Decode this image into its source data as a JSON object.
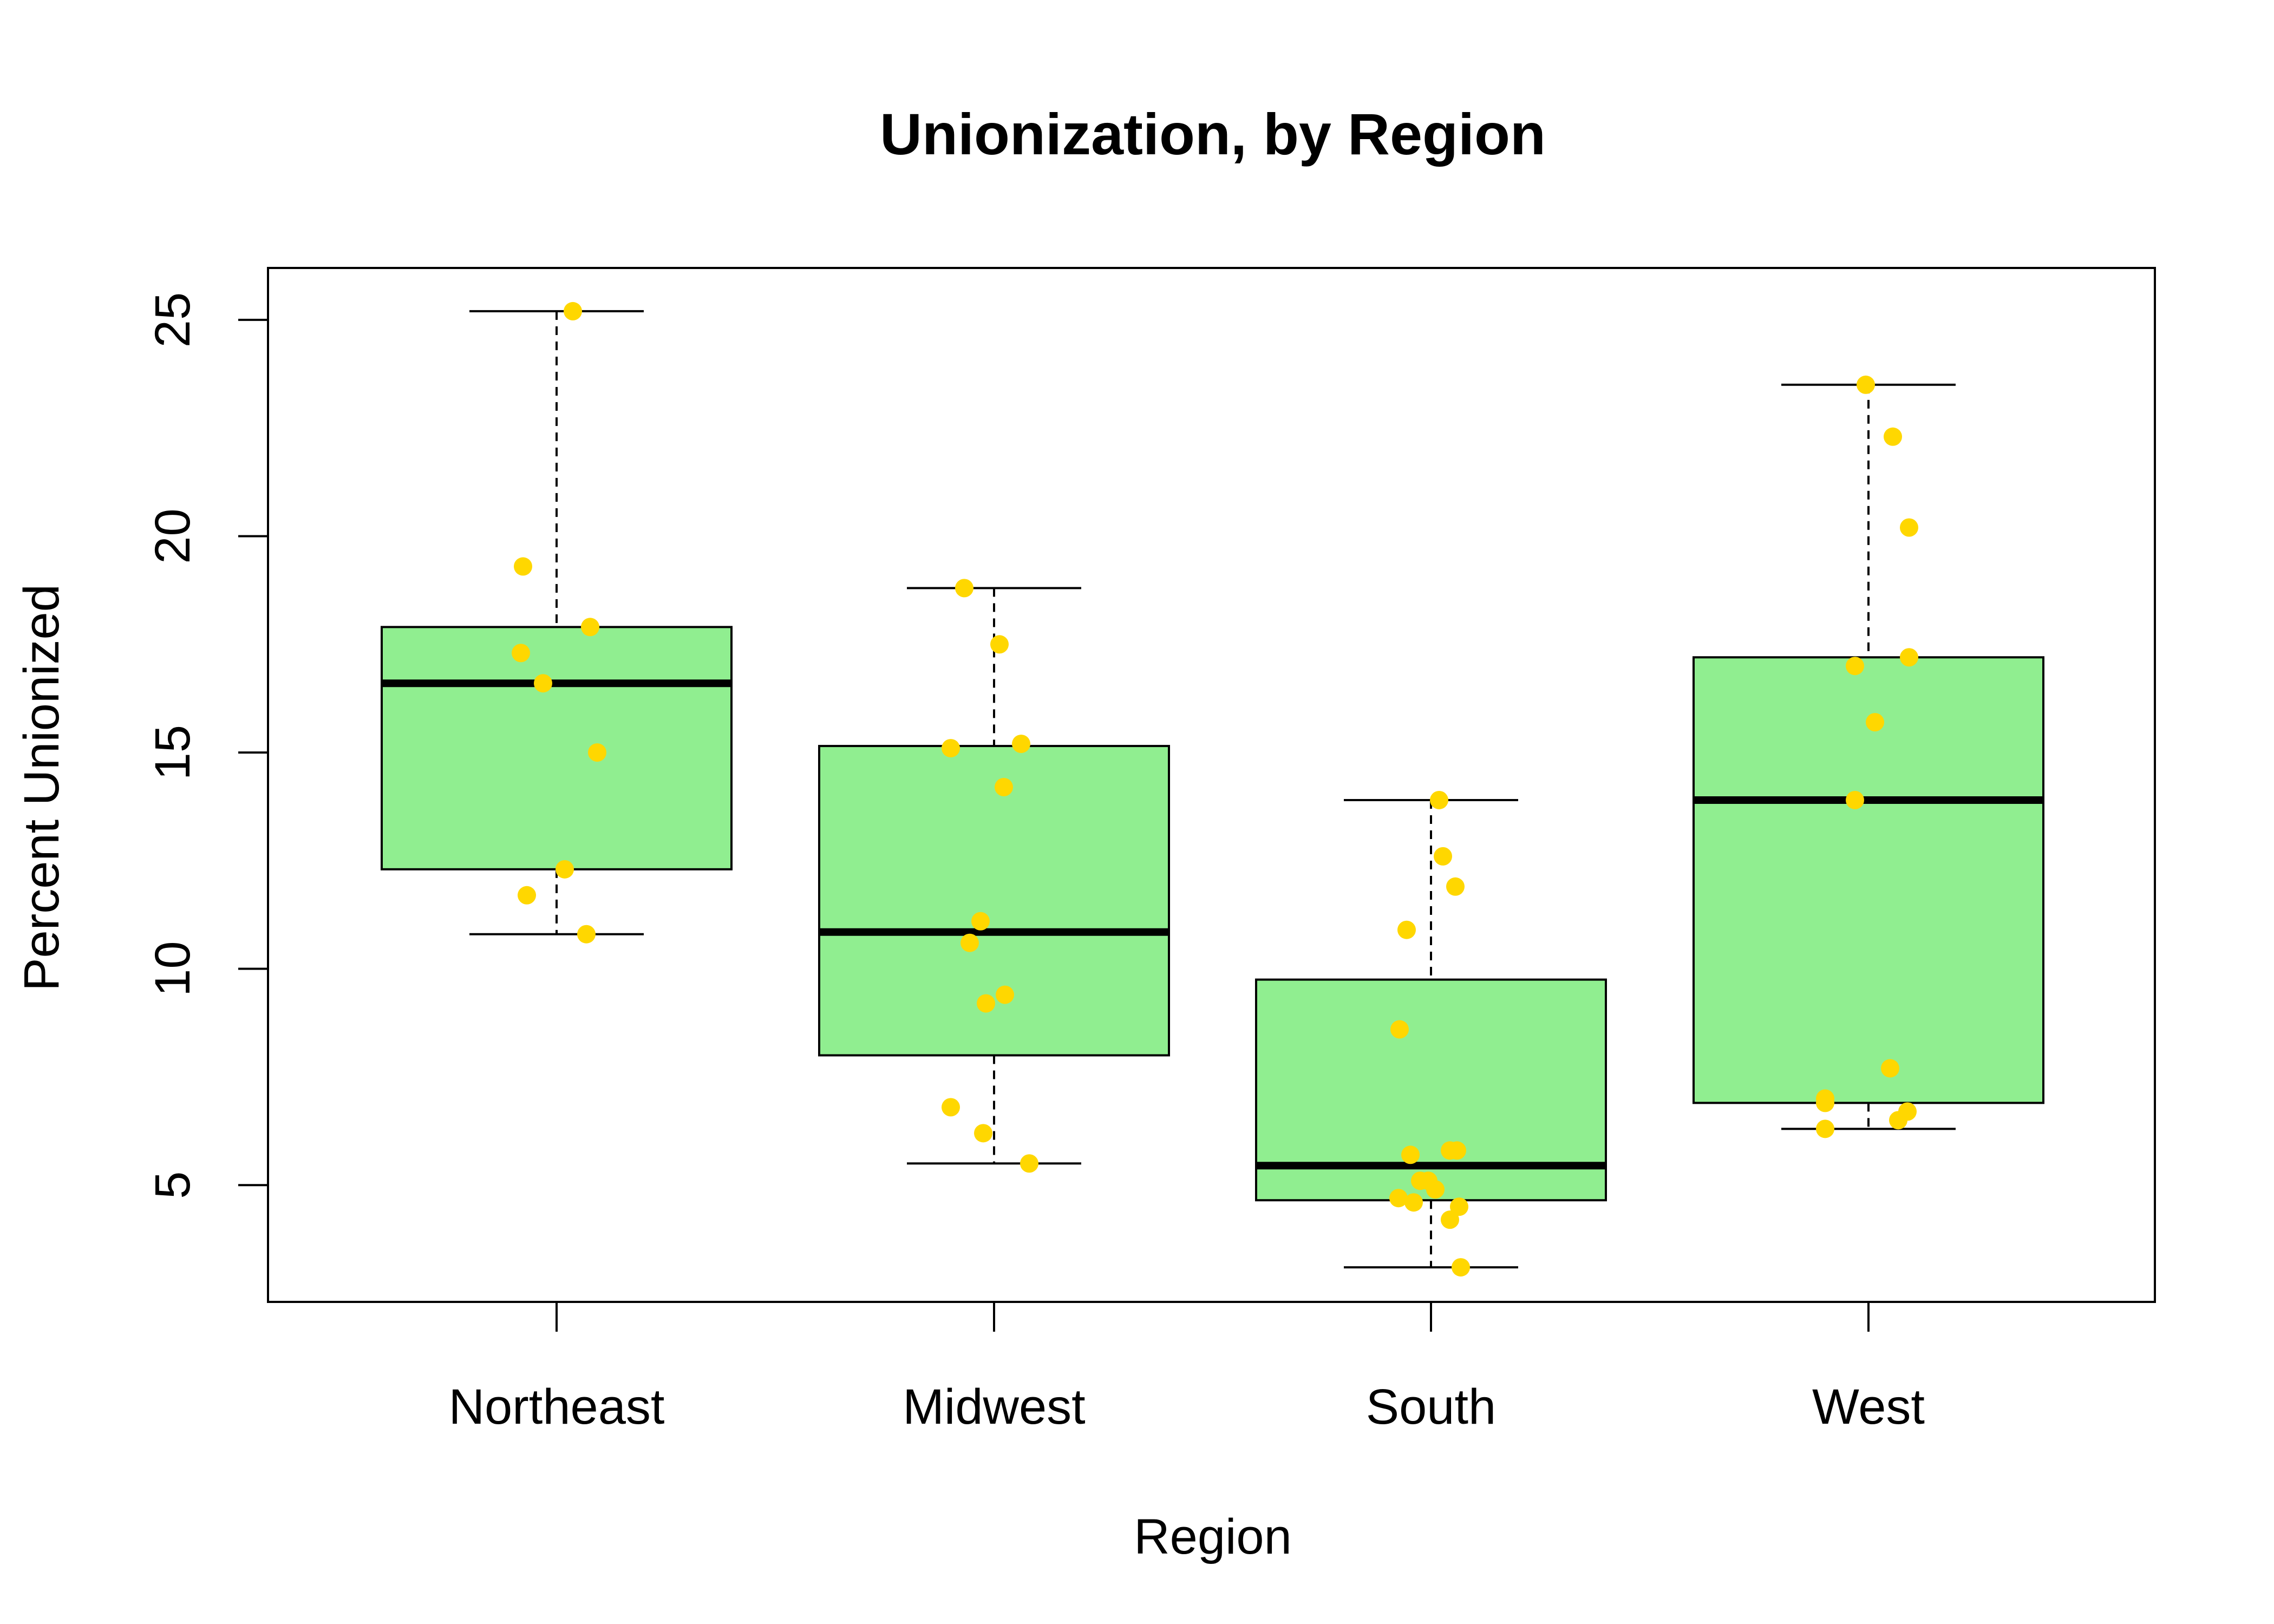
{
  "chart_data": {
    "type": "boxplot",
    "title": "Unionization, by Region",
    "xlabel": "Region",
    "ylabel": "Percent Unionized",
    "ylim": [
      2.3,
      26.2
    ],
    "yticks": [
      5,
      10,
      15,
      20,
      25
    ],
    "categories": [
      "Northeast",
      "Midwest",
      "South",
      "West"
    ],
    "grid": false,
    "box_color": "#90EE90",
    "point_color": "#FFD700",
    "boxes": [
      {
        "category": "Northeast",
        "whisker_low": 10.8,
        "q1": 12.3,
        "median": 16.6,
        "q3": 17.9,
        "whisker_high": 25.2
      },
      {
        "category": "Midwest",
        "whisker_low": 5.5,
        "q1": 8.0,
        "median": 10.85,
        "q3": 15.15,
        "whisker_high": 18.8
      },
      {
        "category": "South",
        "whisker_low": 3.1,
        "q1": 4.65,
        "median": 5.45,
        "q3": 9.75,
        "whisker_high": 13.9
      },
      {
        "category": "West",
        "whisker_low": 6.3,
        "q1": 6.9,
        "median": 13.9,
        "q3": 17.2,
        "whisker_high": 23.5
      }
    ],
    "points": [
      {
        "category": "Northeast",
        "values": [
          25.2,
          19.3,
          17.9,
          17.3,
          16.6,
          15.0,
          12.3,
          11.7,
          10.8
        ]
      },
      {
        "category": "Midwest",
        "values": [
          18.8,
          17.5,
          15.2,
          15.1,
          14.2,
          11.1,
          10.6,
          9.4,
          9.2,
          6.8,
          6.2,
          5.5
        ]
      },
      {
        "category": "South",
        "values": [
          13.9,
          12.6,
          11.9,
          10.9,
          8.6,
          5.8,
          5.8,
          5.7,
          5.1,
          5.1,
          4.9,
          4.7,
          4.6,
          4.5,
          4.2,
          3.1
        ]
      },
      {
        "category": "West",
        "values": [
          23.5,
          22.3,
          20.2,
          17.2,
          17.0,
          15.7,
          13.9,
          7.7,
          7.0,
          6.9,
          6.7,
          6.5,
          6.3
        ]
      }
    ]
  }
}
